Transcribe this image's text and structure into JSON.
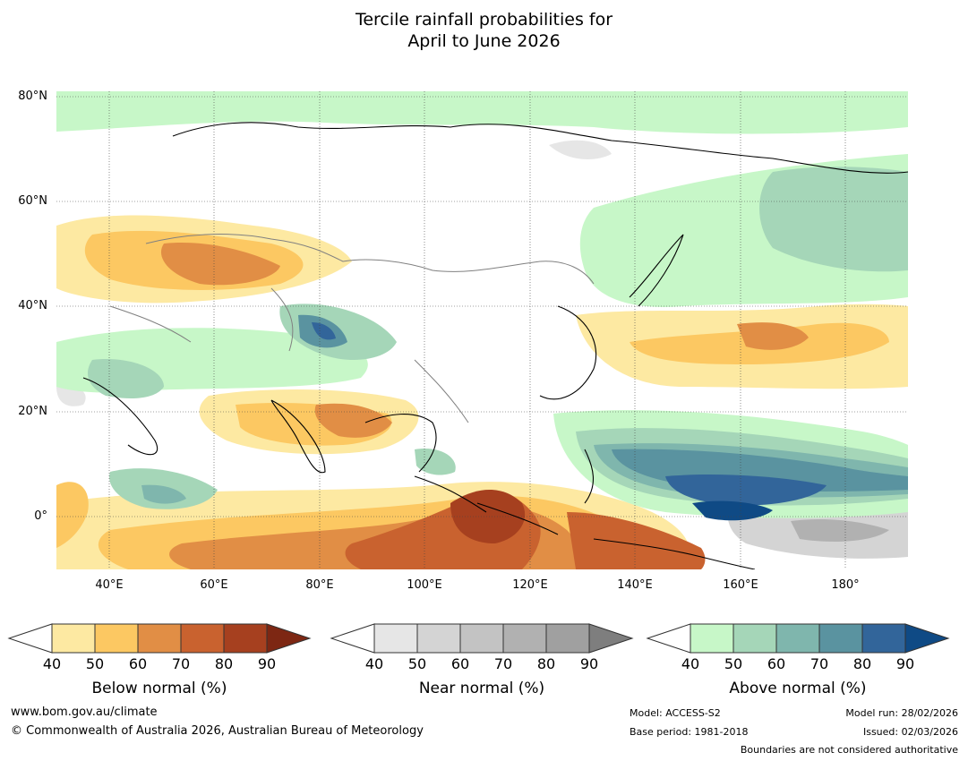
{
  "title_line1": "Tercile rainfall probabilities for",
  "title_line2": "April to June 2026",
  "map": {
    "lat_ticks": [
      "80°N",
      "60°N",
      "40°N",
      "20°N",
      "0°"
    ],
    "lon_ticks": [
      "40°E",
      "60°E",
      "80°E",
      "100°E",
      "120°E",
      "140°E",
      "160°E",
      "180°"
    ],
    "extent": {
      "lon_min": 30,
      "lon_max": 192,
      "lat_min": -10,
      "lat_max": 81
    }
  },
  "colorbars": [
    {
      "title": "Below normal (%)",
      "ticks": [
        "40",
        "50",
        "60",
        "70",
        "80",
        "90"
      ],
      "colors": [
        "#ffffff",
        "#fde9a2",
        "#fcc862",
        "#e18e45",
        "#c9622f",
        "#a6401f",
        "#7d2713"
      ]
    },
    {
      "title": "Near normal (%)",
      "ticks": [
        "40",
        "50",
        "60",
        "70",
        "80",
        "90"
      ],
      "colors": [
        "#ffffff",
        "#e6e6e6",
        "#d4d4d4",
        "#c3c3c3",
        "#b1b1b1",
        "#a0a0a0",
        "#7e7e7e"
      ]
    },
    {
      "title": "Above normal (%)",
      "ticks": [
        "40",
        "50",
        "60",
        "70",
        "80",
        "90"
      ],
      "colors": [
        "#ffffff",
        "#c7f7c8",
        "#a5d6b8",
        "#7fb6ad",
        "#5a93a0",
        "#32659a",
        "#0f4a85"
      ]
    }
  ],
  "footer": {
    "website": "www.bom.gov.au/climate",
    "copyright": "© Commonwealth of Australia 2026, Australian Bureau of Meteorology",
    "model": "Model: ACCESS-S2",
    "base_period": "Base period: 1981-2018",
    "model_run": "Model run: 28/02/2026",
    "issued": "Issued: 02/03/2026",
    "boundaries_note": "Boundaries are not considered authoritative"
  }
}
